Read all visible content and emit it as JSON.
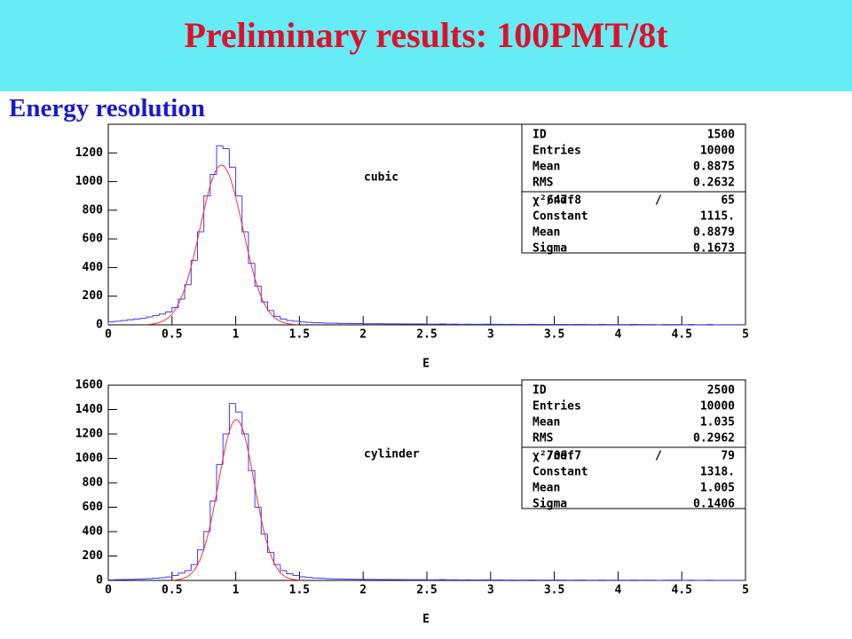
{
  "header": {
    "title": "Preliminary results: 100PMT/8t"
  },
  "subtitle": "Energy resolution",
  "chart_data": [
    {
      "type": "histogram",
      "annotation": "cubic",
      "x_label": "E",
      "color": "#3a3aff",
      "fit_color": "#ff3030",
      "xlim": [
        0,
        5
      ],
      "xticks": [
        0,
        0.5,
        1,
        1.5,
        2,
        2.5,
        3,
        3.5,
        4,
        4.5,
        5
      ],
      "ylim": [
        0,
        1400
      ],
      "yticks": [
        0,
        200,
        400,
        600,
        800,
        1000,
        1200
      ],
      "bins": [
        0,
        0.05,
        0.1,
        0.15,
        0.2,
        0.25,
        0.3,
        0.35,
        0.4,
        0.45,
        0.5,
        0.55,
        0.6,
        0.65,
        0.7,
        0.75,
        0.8,
        0.85,
        0.9,
        0.95,
        1,
        1.05,
        1.1,
        1.15,
        1.2,
        1.25,
        1.3,
        1.35,
        1.4,
        1.45,
        1.5,
        1.55,
        1.6,
        1.65,
        1.7,
        1.75,
        1.8,
        1.85,
        1.9,
        1.95,
        2,
        2.05,
        2.1,
        2.15,
        2.2,
        2.25,
        2.3,
        2.35,
        2.4,
        2.45,
        2.5,
        2.55,
        2.6,
        2.65,
        2.7,
        2.75,
        2.8,
        2.85,
        2.9,
        2.95,
        3,
        3.05,
        3.1,
        3.15,
        3.2,
        3.25,
        3.3,
        3.35,
        3.4,
        3.45,
        3.5,
        3.55,
        3.6,
        3.65,
        3.7,
        3.75,
        3.8,
        3.85,
        3.9,
        3.95,
        4,
        4.05,
        4.1,
        4.15,
        4.2,
        4.25,
        4.3,
        4.35,
        4.4,
        4.45,
        4.5,
        4.55,
        4.6,
        4.65,
        4.7,
        4.75,
        4.8,
        4.85,
        4.9,
        4.95,
        5
      ],
      "values": [
        20,
        25,
        30,
        35,
        40,
        45,
        55,
        65,
        75,
        90,
        120,
        180,
        280,
        450,
        650,
        900,
        1050,
        1250,
        1230,
        1100,
        900,
        650,
        430,
        270,
        160,
        100,
        60,
        40,
        30,
        25,
        20,
        18,
        15,
        14,
        12,
        12,
        10,
        10,
        9,
        9,
        8,
        8,
        8,
        7,
        7,
        7,
        6,
        6,
        6,
        6,
        5,
        5,
        6,
        5,
        5,
        4,
        5,
        4,
        4,
        5,
        4,
        4,
        3,
        4,
        3,
        3,
        4,
        3,
        3,
        3,
        3,
        3,
        2,
        3,
        3,
        2,
        2,
        3,
        2,
        2,
        2,
        2,
        3,
        2,
        2,
        2,
        1,
        2,
        2,
        2,
        1,
        2,
        1,
        1,
        2,
        1,
        1,
        1,
        1,
        1
      ],
      "stats": [
        {
          "name": "ID",
          "value": 1500
        },
        {
          "name": "Entries",
          "value": 10000
        },
        {
          "name": "Mean",
          "value": 0.8875
        },
        {
          "name": "RMS",
          "value": 0.2632
        }
      ],
      "fit": {
        "chi2_label": "χ²/ndf",
        "chi2": 647.8,
        "separator": "/",
        "ndf": 65,
        "params": [
          {
            "name": "Constant",
            "value": {
              "value": 1115,
              "label": "1115."
            }
          },
          {
            "name": "Mean",
            "value": 0.8879
          },
          {
            "name": "Sigma",
            "value": 0.1673
          }
        ]
      }
    },
    {
      "type": "histogram",
      "annotation": "cylinder",
      "x_label": "E",
      "color": "#3a3aff",
      "fit_color": "#ff3030",
      "xlim": [
        0,
        5
      ],
      "xticks": [
        0,
        0.5,
        1,
        1.5,
        2,
        2.5,
        3,
        3.5,
        4,
        4.5,
        5
      ],
      "ylim": [
        0,
        1600
      ],
      "yticks": [
        0,
        200,
        400,
        600,
        800,
        1000,
        1200,
        1400,
        1600
      ],
      "bins": [
        0,
        0.05,
        0.1,
        0.15,
        0.2,
        0.25,
        0.3,
        0.35,
        0.4,
        0.45,
        0.5,
        0.55,
        0.6,
        0.65,
        0.7,
        0.75,
        0.8,
        0.85,
        0.9,
        0.95,
        1,
        1.05,
        1.1,
        1.15,
        1.2,
        1.25,
        1.3,
        1.35,
        1.4,
        1.45,
        1.5,
        1.55,
        1.6,
        1.65,
        1.7,
        1.75,
        1.8,
        1.85,
        1.9,
        1.95,
        2,
        2.05,
        2.1,
        2.15,
        2.2,
        2.25,
        2.3,
        2.35,
        2.4,
        2.45,
        2.5,
        2.55,
        2.6,
        2.65,
        2.7,
        2.75,
        2.8,
        2.85,
        2.9,
        2.95,
        3,
        3.05,
        3.1,
        3.15,
        3.2,
        3.25,
        3.3,
        3.35,
        3.4,
        3.45,
        3.5,
        3.55,
        3.6,
        3.65,
        3.7,
        3.75,
        3.8,
        3.85,
        3.9,
        3.95,
        4,
        4.05,
        4.1,
        4.15,
        4.2,
        4.25,
        4.3,
        4.35,
        4.4,
        4.45,
        4.5,
        4.55,
        4.6,
        4.65,
        4.7,
        4.75,
        4.8,
        4.85,
        4.9,
        4.95,
        5
      ],
      "values": [
        5,
        6,
        7,
        8,
        10,
        12,
        15,
        18,
        22,
        28,
        40,
        60,
        80,
        130,
        250,
        400,
        650,
        950,
        1200,
        1450,
        1380,
        1200,
        900,
        600,
        380,
        230,
        130,
        80,
        55,
        40,
        30,
        25,
        20,
        18,
        15,
        13,
        12,
        11,
        10,
        9,
        8,
        8,
        8,
        7,
        7,
        7,
        6,
        6,
        6,
        6,
        5,
        5,
        6,
        5,
        5,
        4,
        5,
        4,
        4,
        5,
        4,
        4,
        3,
        4,
        3,
        3,
        4,
        3,
        3,
        3,
        3,
        3,
        2,
        3,
        3,
        2,
        2,
        3,
        2,
        2,
        2,
        2,
        3,
        2,
        2,
        2,
        1,
        2,
        2,
        2,
        1,
        2,
        1,
        1,
        2,
        1,
        1,
        1,
        1,
        1
      ],
      "stats": [
        {
          "name": "ID",
          "value": 2500
        },
        {
          "name": "Entries",
          "value": 10000
        },
        {
          "name": "Mean",
          "value": 1.035
        },
        {
          "name": "RMS",
          "value": 0.2962
        }
      ],
      "fit": {
        "chi2_label": "χ²/ndf",
        "chi2": 709.7,
        "separator": "/",
        "ndf": 79,
        "params": [
          {
            "name": "Constant",
            "value": {
              "value": 1318,
              "label": "1318."
            }
          },
          {
            "name": "Mean",
            "value": 1.005
          },
          {
            "name": "Sigma",
            "value": 0.1406
          }
        ]
      }
    }
  ]
}
